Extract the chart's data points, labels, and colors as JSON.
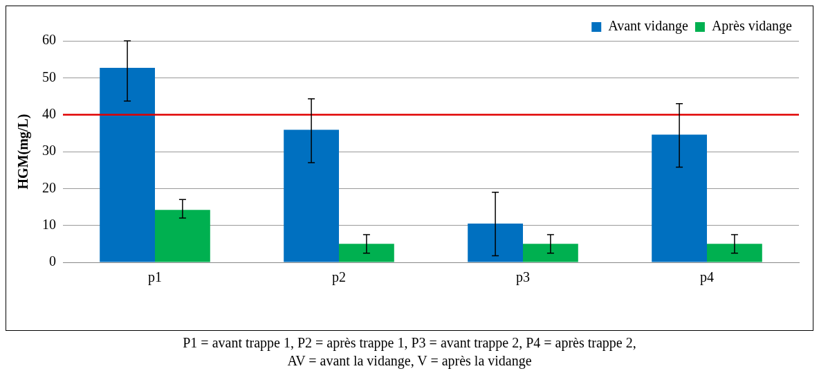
{
  "chart_data": {
    "type": "bar",
    "ylabel": "HGM(mg/L)",
    "categories": [
      "p1",
      "p2",
      "p3",
      "p4"
    ],
    "series": [
      {
        "name": "Avant vidange",
        "color": "#0070c0",
        "values": [
          52.7,
          35.9,
          10.5,
          34.6
        ],
        "errors": [
          [
            43.7,
            60
          ],
          [
            27,
            44.3
          ],
          [
            1.8,
            19
          ],
          [
            25.8,
            43
          ]
        ]
      },
      {
        "name": "Après vidange",
        "color": "#00b050",
        "values": [
          14.2,
          5,
          5,
          5
        ],
        "errors": [
          [
            12,
            17
          ],
          [
            2.5,
            7.5
          ],
          [
            2.5,
            7.5
          ],
          [
            2.5,
            7.5
          ]
        ]
      }
    ],
    "ylim": [
      0,
      60
    ],
    "yticks": [
      0,
      10,
      20,
      30,
      40,
      50,
      60
    ],
    "grid": "y",
    "legend": "top right",
    "ref_lines": [
      {
        "axis": "y",
        "value": 40,
        "color": "#e00000"
      }
    ],
    "annotations": [
      "P1 = avant trappe 1, P2 = après trappe 1, P3 = avant trappe 2, P4 = après trappe 2,",
      "AV = avant la vidange, V = après la vidange"
    ]
  }
}
